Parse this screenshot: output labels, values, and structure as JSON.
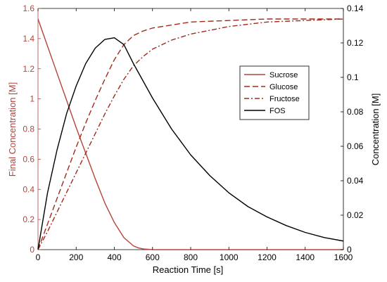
{
  "colors": {
    "left_axis": "#b5443a",
    "right_axis": "#000000",
    "sucrose": "#b5443a",
    "glucose": "#a02b1d",
    "fructose": "#a02b1d",
    "fos": "#000000"
  },
  "chart_data": {
    "type": "line",
    "title": "",
    "xlabel": "Reaction Time [s]",
    "ylabel_left": "Final Concentration [M]",
    "ylabel_right": "Concentration [M]",
    "xlim": [
      0,
      1600
    ],
    "ylim_left": [
      0,
      1.6
    ],
    "ylim_right": [
      0,
      0.14
    ],
    "xticks": [
      "0",
      "200",
      "400",
      "600",
      "800",
      "1000",
      "1200",
      "1400",
      "1600"
    ],
    "yticks_left": [
      "0",
      "0.2",
      "0.4",
      "0.6",
      "0.8",
      "1",
      "1.2",
      "1.4",
      "1.6"
    ],
    "yticks_right": [
      "0",
      "0.02",
      "0.04",
      "0.06",
      "0.08",
      "0.1",
      "0.12",
      "0.14"
    ],
    "grid": false,
    "legend_position": "right-center",
    "series": [
      {
        "name": "Sucrose",
        "axis": "left",
        "style": "solid",
        "x": [
          0,
          50,
          100,
          150,
          200,
          250,
          300,
          350,
          400,
          450,
          500,
          525,
          550,
          600,
          700,
          800,
          1000,
          1200,
          1400,
          1600
        ],
        "y": [
          1.53,
          1.35,
          1.17,
          0.99,
          0.81,
          0.64,
          0.47,
          0.31,
          0.18,
          0.08,
          0.025,
          0.012,
          0.005,
          0.0,
          0.0,
          0.0,
          0.0,
          0.0,
          0.0,
          0.0
        ]
      },
      {
        "name": "Glucose",
        "axis": "left",
        "style": "dashed",
        "x": [
          0,
          50,
          100,
          150,
          200,
          250,
          300,
          350,
          400,
          450,
          500,
          550,
          600,
          700,
          800,
          1000,
          1200,
          1400,
          1600
        ],
        "y": [
          0.0,
          0.17,
          0.34,
          0.51,
          0.68,
          0.84,
          0.99,
          1.13,
          1.26,
          1.36,
          1.42,
          1.45,
          1.47,
          1.49,
          1.51,
          1.52,
          1.53,
          1.53,
          1.53
        ]
      },
      {
        "name": "Fructose",
        "axis": "left",
        "style": "dashdot",
        "x": [
          0,
          50,
          100,
          150,
          200,
          250,
          300,
          350,
          400,
          450,
          500,
          550,
          600,
          700,
          800,
          1000,
          1200,
          1400,
          1600
        ],
        "y": [
          0.0,
          0.12,
          0.25,
          0.38,
          0.51,
          0.64,
          0.77,
          0.9,
          1.02,
          1.13,
          1.22,
          1.28,
          1.33,
          1.39,
          1.43,
          1.48,
          1.51,
          1.52,
          1.53
        ]
      },
      {
        "name": "FOS",
        "axis": "right",
        "style": "solid",
        "x": [
          0,
          50,
          100,
          150,
          200,
          250,
          300,
          350,
          400,
          450,
          500,
          550,
          600,
          700,
          800,
          900,
          1000,
          1100,
          1200,
          1300,
          1400,
          1500,
          1600
        ],
        "y": [
          0.0,
          0.033,
          0.058,
          0.079,
          0.095,
          0.108,
          0.117,
          0.122,
          0.123,
          0.119,
          0.108,
          0.098,
          0.088,
          0.07,
          0.055,
          0.043,
          0.033,
          0.025,
          0.019,
          0.014,
          0.01,
          0.007,
          0.005
        ]
      }
    ]
  }
}
